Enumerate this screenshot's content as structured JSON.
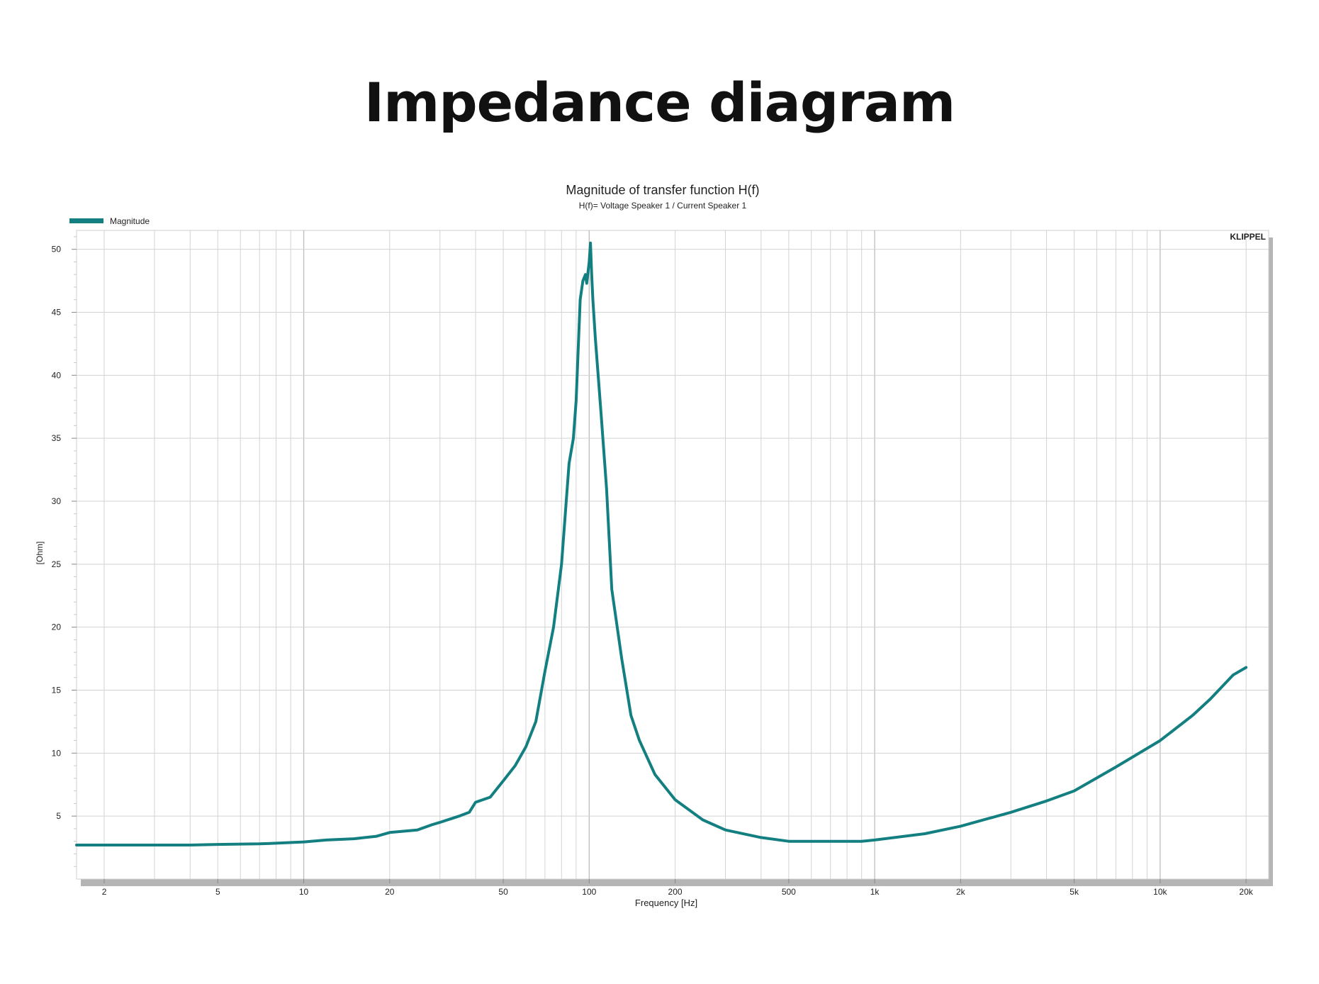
{
  "page": {
    "title": "Impedance diagram"
  },
  "chart_data": {
    "type": "line",
    "title": "Magnitude of transfer function H(f)",
    "subtitle": "H(f)= Voltage Speaker 1 / Current Speaker 1",
    "xlabel": "Frequency [Hz]",
    "ylabel": "[Ohm]",
    "xscale": "log",
    "xlim": [
      1.6,
      24000
    ],
    "ylim": [
      0,
      51.5
    ],
    "grid": true,
    "legend_position": "top-left",
    "brand": "KLIPPEL",
    "x_ticks": [
      {
        "value": 2,
        "label": "2"
      },
      {
        "value": 5,
        "label": "5"
      },
      {
        "value": 10,
        "label": "10"
      },
      {
        "value": 20,
        "label": "20"
      },
      {
        "value": 50,
        "label": "50"
      },
      {
        "value": 100,
        "label": "100"
      },
      {
        "value": 200,
        "label": "200"
      },
      {
        "value": 500,
        "label": "500"
      },
      {
        "value": 1000,
        "label": "1k"
      },
      {
        "value": 2000,
        "label": "2k"
      },
      {
        "value": 5000,
        "label": "5k"
      },
      {
        "value": 10000,
        "label": "10k"
      },
      {
        "value": 20000,
        "label": "20k"
      }
    ],
    "y_ticks": [
      {
        "value": 5,
        "label": "5"
      },
      {
        "value": 10,
        "label": "10"
      },
      {
        "value": 15,
        "label": "15"
      },
      {
        "value": 20,
        "label": "20"
      },
      {
        "value": 25,
        "label": "25"
      },
      {
        "value": 30,
        "label": "30"
      },
      {
        "value": 35,
        "label": "35"
      },
      {
        "value": 40,
        "label": "40"
      },
      {
        "value": 45,
        "label": "45"
      },
      {
        "value": 50,
        "label": "50"
      }
    ],
    "series": [
      {
        "name": "Magnitude",
        "color": "#137f80",
        "x": [
          1.6,
          2,
          3,
          4,
          5,
          7,
          8,
          10,
          12,
          15,
          18,
          20,
          25,
          28,
          30,
          35,
          38,
          40,
          45,
          50,
          55,
          60,
          65,
          70,
          75,
          80,
          85,
          88,
          90,
          93,
          95,
          97,
          98,
          100,
          101,
          102,
          103,
          105,
          110,
          115,
          120,
          130,
          140,
          150,
          170,
          200,
          250,
          300,
          400,
          500,
          700,
          900,
          1000,
          1500,
          2000,
          3000,
          4000,
          5000,
          7000,
          10000,
          13000,
          15000,
          18000,
          20000
        ],
        "values": [
          2.7,
          2.7,
          2.7,
          2.7,
          2.75,
          2.8,
          2.85,
          2.95,
          3.1,
          3.2,
          3.4,
          3.7,
          3.9,
          4.3,
          4.5,
          5.0,
          5.3,
          6.1,
          6.5,
          7.8,
          9.0,
          10.5,
          12.5,
          16.5,
          20.0,
          25.0,
          33.0,
          35.0,
          38.0,
          46.0,
          47.5,
          48.0,
          47.3,
          49.0,
          50.5,
          48.0,
          46.0,
          43.0,
          37.0,
          31.0,
          23.0,
          17.5,
          13.0,
          11.0,
          8.3,
          6.3,
          4.7,
          3.9,
          3.3,
          3.0,
          3.0,
          3.0,
          3.1,
          3.6,
          4.2,
          5.3,
          6.2,
          7.0,
          8.9,
          11.0,
          13.0,
          14.3,
          16.2,
          16.8
        ]
      }
    ]
  }
}
